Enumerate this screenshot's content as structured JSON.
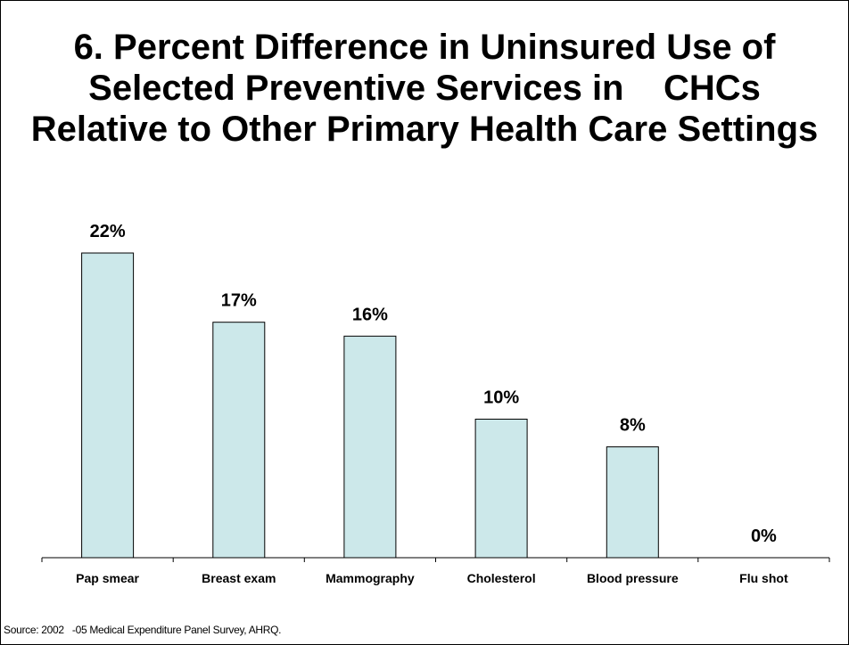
{
  "title_lines": [
    "6. Percent Difference in Uninsured Use of",
    "Selected Preventive Services in    CHCs",
    "Relative to Other Primary Health Care Settings"
  ],
  "source": "Source: 2002   -05 Medical Expenditure Panel Survey, AHRQ.",
  "colors": {
    "bar_fill": "#CCE8EA",
    "bar_stroke": "#000000",
    "axis": "#000000"
  },
  "chart_data": {
    "type": "bar",
    "categories": [
      "Pap smear",
      "Breast exam",
      "Mammography",
      "Cholesterol",
      "Blood pressure",
      "Flu shot"
    ],
    "values": [
      22,
      17,
      16,
      10,
      8,
      0
    ],
    "value_labels": [
      "22%",
      "17%",
      "16%",
      "10%",
      "8%",
      "0%"
    ],
    "ylim": [
      0,
      22
    ],
    "grid": false,
    "legend": "none"
  }
}
